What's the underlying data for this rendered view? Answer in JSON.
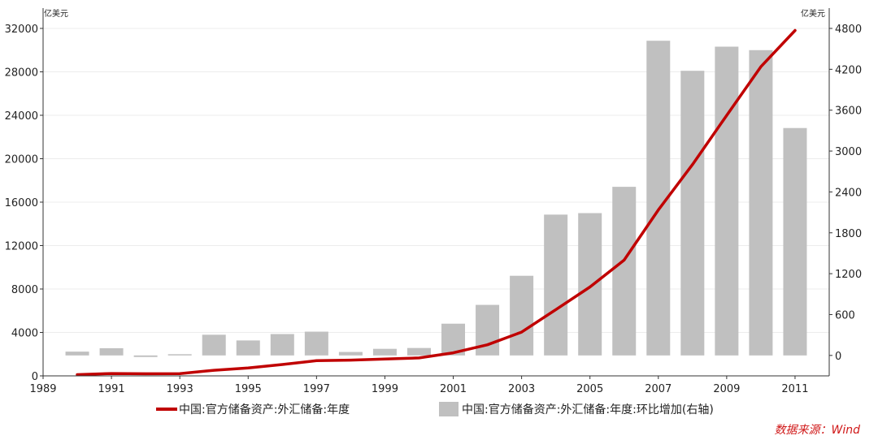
{
  "chart_data": {
    "type": "bar+line",
    "title": "",
    "left_axis": {
      "unit": "亿美元",
      "ylim": [
        0,
        32000
      ],
      "ticks": [
        "0",
        "4000",
        "8000",
        "12000",
        "16000",
        "20000",
        "24000",
        "28000",
        "32000"
      ]
    },
    "right_axis": {
      "unit": "亿美元",
      "ylim": [
        -300,
        4800
      ],
      "ticks": [
        "0",
        "600",
        "1200",
        "1800",
        "2400",
        "3000",
        "3600",
        "4200",
        "4800"
      ]
    },
    "x_axis": {
      "xlim": [
        1989,
        2012
      ],
      "tick_labels": [
        "1989",
        "1991",
        "1993",
        "1995",
        "1997",
        "1999",
        "2001",
        "2003",
        "2005",
        "2007",
        "2009",
        "2011"
      ]
    },
    "x": [
      1990,
      1991,
      1992,
      1993,
      1994,
      1995,
      1996,
      1997,
      1998,
      1999,
      2000,
      2001,
      2002,
      2003,
      2004,
      2005,
      2006,
      2007,
      2008,
      2009,
      2010,
      2011
    ],
    "series": [
      {
        "name": "中国:官方储备资产:外汇储备:年度",
        "kind": "line",
        "axis": "left",
        "color": "#c00000",
        "values": [
          111,
          217,
          194,
          212,
          516,
          736,
          1050,
          1399,
          1450,
          1547,
          1656,
          2122,
          2864,
          4033,
          6099,
          8189,
          10663,
          15282,
          19460,
          23992,
          28473,
          31811
        ]
      },
      {
        "name": "中国:官方储备资产:外汇储备:年度:环比增加(右轴)",
        "kind": "bar",
        "axis": "right",
        "color": "#c0c0c0",
        "values": [
          56,
          106,
          -23,
          18,
          304,
          220,
          314,
          349,
          51,
          97,
          109,
          466,
          742,
          1169,
          2067,
          2089,
          2475,
          4619,
          4178,
          4532,
          4481,
          3338
        ]
      }
    ],
    "legend": {
      "placement": "bottom"
    },
    "source": "数据来源：Wind"
  }
}
